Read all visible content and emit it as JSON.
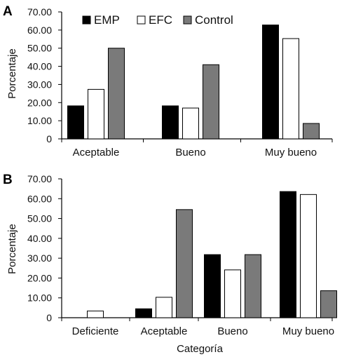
{
  "colors": {
    "EMP": "#000000",
    "EFC": "#ffffff",
    "Control": "#7a7a7a"
  },
  "legend": [
    "EMP",
    "EFC",
    "Control"
  ],
  "x_axis_title": "Categoría",
  "chart_data": [
    {
      "type": "bar",
      "panel": "A",
      "ylabel": "Porcentaje",
      "ylim": [
        0,
        70
      ],
      "yticks": [
        "0",
        "10.00",
        "20.00",
        "30.00",
        "40.00",
        "50.00",
        "60.00",
        "70.00"
      ],
      "categories": [
        "Aceptable",
        "Bueno",
        "Muy bueno"
      ],
      "series": [
        {
          "name": "EMP",
          "values": [
            18.2,
            18.2,
            62.8
          ]
        },
        {
          "name": "EFC",
          "values": [
            27.3,
            17.0,
            55.3
          ]
        },
        {
          "name": "Control",
          "values": [
            50.0,
            40.9,
            8.5
          ]
        }
      ],
      "legend_position": "top"
    },
    {
      "type": "bar",
      "panel": "B",
      "ylabel": "Porcentaje",
      "ylim": [
        0,
        70
      ],
      "yticks": [
        "0",
        "10.00",
        "20.00",
        "30.00",
        "40.00",
        "50.00",
        "60.00",
        "70.00"
      ],
      "categories": [
        "Deficiente",
        "Aceptable",
        "Bueno",
        "Muy bueno"
      ],
      "series": [
        {
          "name": "EMP",
          "values": [
            0,
            4.5,
            31.8,
            63.6
          ]
        },
        {
          "name": "EFC",
          "values": [
            3.4,
            10.3,
            24.1,
            62.1
          ]
        },
        {
          "name": "Control",
          "values": [
            0,
            54.5,
            31.8,
            13.6
          ]
        }
      ],
      "xlabel": "Categoría"
    }
  ]
}
